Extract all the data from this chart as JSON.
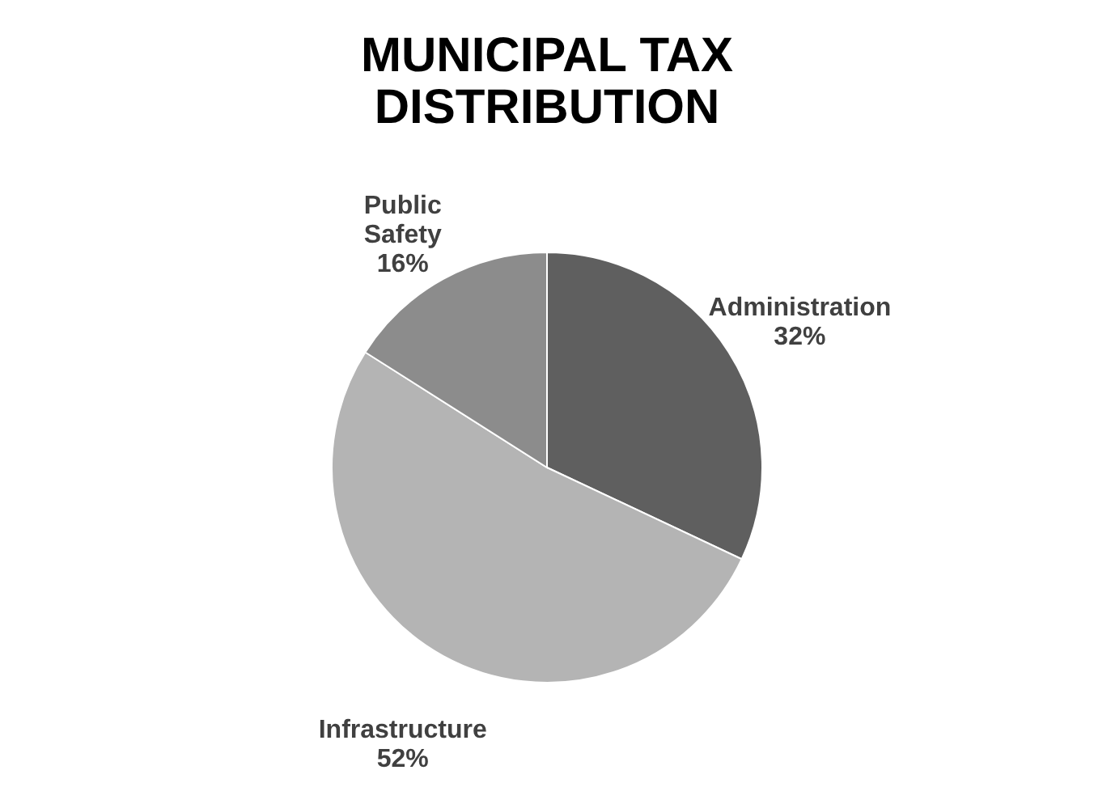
{
  "chart_data": {
    "type": "pie",
    "title": "MUNICIPAL TAX DISTRIBUTION",
    "categories": [
      "Administration",
      "Infrastructure",
      "Public Safety"
    ],
    "values": [
      32,
      52,
      16
    ],
    "colors": [
      "#5f5f5f",
      "#b4b4b4",
      "#8c8c8c"
    ],
    "value_labels": [
      "32%",
      "52%",
      "16%"
    ],
    "legend": false
  }
}
